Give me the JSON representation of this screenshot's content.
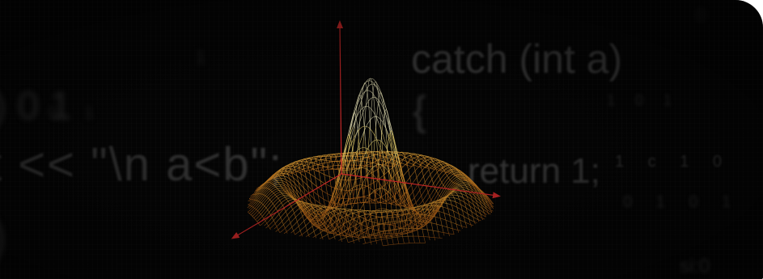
{
  "background_code": {
    "left_line_1": ") 0 1",
    "left_line_2": "t << \"\\n a<b\";",
    "left_line_3": ")",
    "right_line_1": "catch (int a)",
    "right_line_2": "{",
    "right_line_3": "return 1;",
    "mid_digits": "1",
    "binary_1": "1 0 1",
    "binary_2": "1 c 1 0",
    "binary_3": "0 1 0 1",
    "binary_4": "0 1",
    "binary_5": "si:0",
    "binary_6": "0"
  },
  "colors": {
    "background": "#050505",
    "mesh_outer": "#c87a1e",
    "mesh_mid": "#e0a030",
    "mesh_peak": "#f5f0c0",
    "axes": "#d42a2a"
  },
  "figure": {
    "function": "sinc-like radial ripple surface",
    "style": "wireframe"
  }
}
